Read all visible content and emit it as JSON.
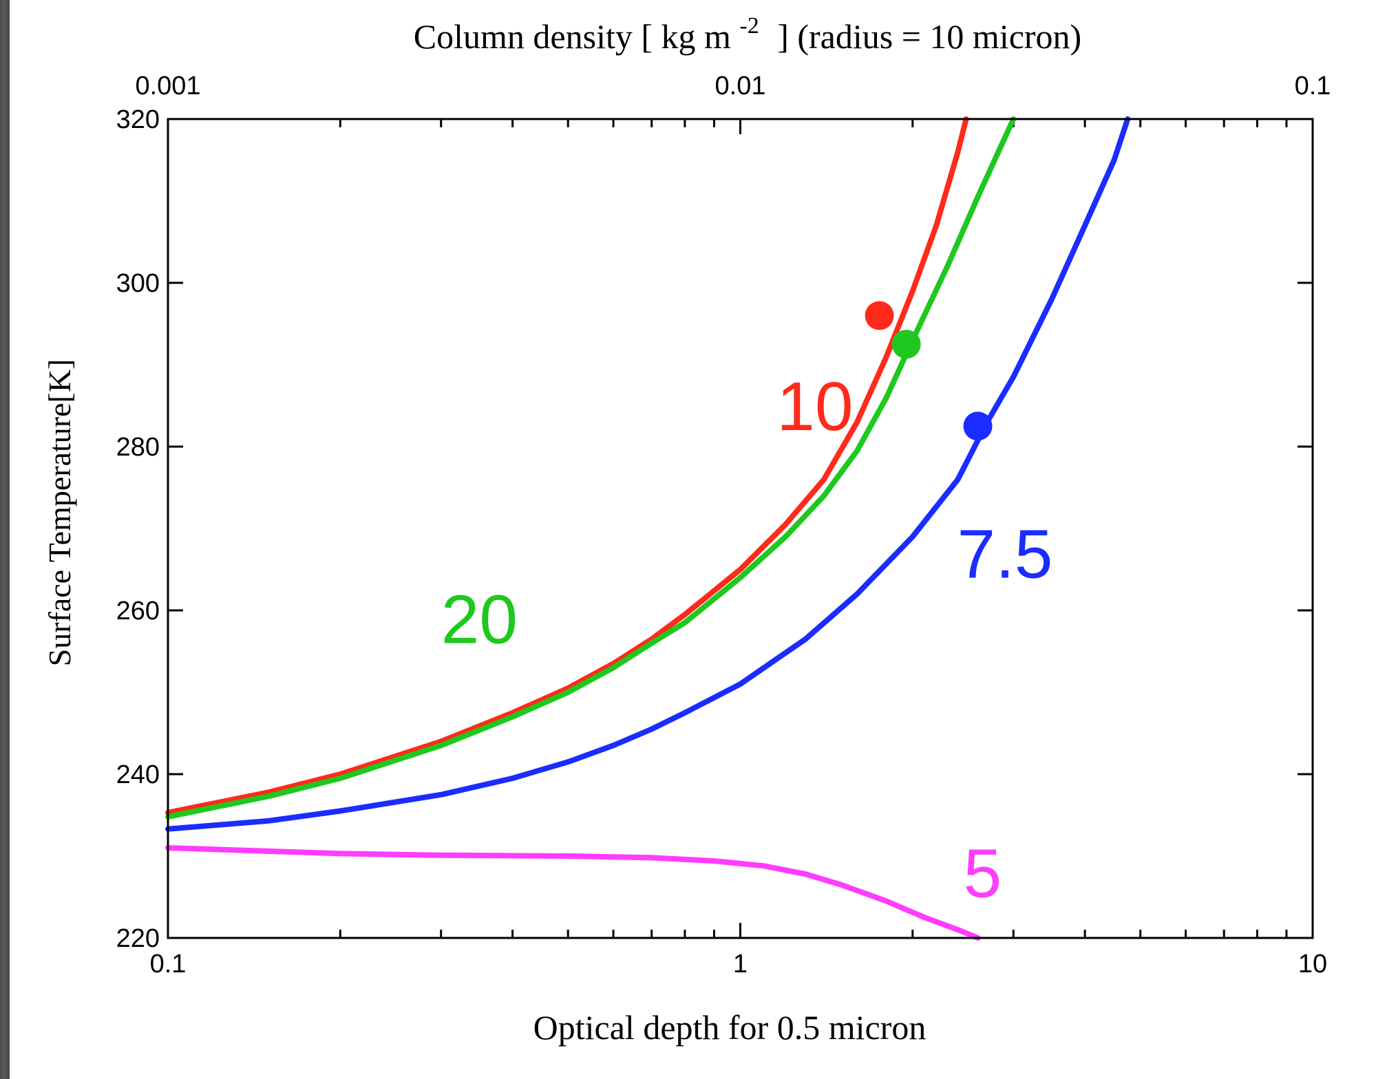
{
  "chart_data": {
    "type": "line",
    "xlabel": "Optical depth for 0.5 micron",
    "ylabel": "Surface Temperature[K]",
    "top_axis": {
      "label_prefix": "Column density [ kg m",
      "label_exp": "-2",
      "label_suffix": "] (radius = 10 micron)",
      "ticks": [
        0.001,
        0.01,
        0.1
      ],
      "tick_labels": [
        "0.001",
        "0.01",
        "0.1"
      ]
    },
    "x_scale": "log",
    "xlim": [
      0.1,
      10
    ],
    "ylim": [
      220,
      320
    ],
    "x_ticks": [
      0.1,
      1,
      10
    ],
    "x_tick_labels": [
      "0.1",
      "1",
      "10"
    ],
    "y_ticks": [
      220,
      240,
      260,
      280,
      300,
      320
    ],
    "y_tick_labels": [
      "220",
      "240",
      "260",
      "280",
      "300",
      "320"
    ],
    "grid": false,
    "series": [
      {
        "name": "10",
        "color": "#ff2a1a",
        "points": [
          [
            0.1,
            235.3
          ],
          [
            0.15,
            237.8
          ],
          [
            0.2,
            240.0
          ],
          [
            0.3,
            244.0
          ],
          [
            0.4,
            247.5
          ],
          [
            0.5,
            250.5
          ],
          [
            0.6,
            253.5
          ],
          [
            0.7,
            256.5
          ],
          [
            0.8,
            259.5
          ],
          [
            1.0,
            265.0
          ],
          [
            1.2,
            270.5
          ],
          [
            1.4,
            276.0
          ],
          [
            1.6,
            283.0
          ],
          [
            1.8,
            291.0
          ],
          [
            2.0,
            299.0
          ],
          [
            2.2,
            307.0
          ],
          [
            2.4,
            316.0
          ],
          [
            2.48,
            320.0
          ]
        ],
        "marker": [
          1.75,
          296
        ],
        "label_pos": [
          1.35,
          282
        ]
      },
      {
        "name": "20",
        "color": "#1ec81e",
        "points": [
          [
            0.1,
            234.8
          ],
          [
            0.15,
            237.3
          ],
          [
            0.2,
            239.5
          ],
          [
            0.3,
            243.5
          ],
          [
            0.4,
            247.0
          ],
          [
            0.5,
            250.0
          ],
          [
            0.6,
            253.0
          ],
          [
            0.7,
            256.0
          ],
          [
            0.8,
            258.5
          ],
          [
            1.0,
            264.0
          ],
          [
            1.2,
            269.0
          ],
          [
            1.4,
            274.0
          ],
          [
            1.6,
            279.5
          ],
          [
            1.8,
            286.0
          ],
          [
            2.0,
            293.0
          ],
          [
            2.3,
            302.0
          ],
          [
            2.6,
            310.5
          ],
          [
            3.0,
            320.0
          ]
        ],
        "marker": [
          1.95,
          292.5
        ],
        "label_pos": [
          0.35,
          256
        ]
      },
      {
        "name": "7.5",
        "color": "#1a2cff",
        "points": [
          [
            0.1,
            233.3
          ],
          [
            0.15,
            234.3
          ],
          [
            0.2,
            235.5
          ],
          [
            0.3,
            237.5
          ],
          [
            0.4,
            239.5
          ],
          [
            0.5,
            241.5
          ],
          [
            0.6,
            243.5
          ],
          [
            0.7,
            245.5
          ],
          [
            0.8,
            247.5
          ],
          [
            1.0,
            251.0
          ],
          [
            1.3,
            256.5
          ],
          [
            1.6,
            262.0
          ],
          [
            2.0,
            269.0
          ],
          [
            2.4,
            276.0
          ],
          [
            2.7,
            283.0
          ],
          [
            3.0,
            288.5
          ],
          [
            3.5,
            298.0
          ],
          [
            4.0,
            307.0
          ],
          [
            4.5,
            315.0
          ],
          [
            4.75,
            320.0
          ]
        ],
        "marker": [
          2.6,
          282.5
        ],
        "label_pos": [
          2.9,
          264
        ]
      },
      {
        "name": "5",
        "color": "#ff3cff",
        "points": [
          [
            0.1,
            231.0
          ],
          [
            0.2,
            230.3
          ],
          [
            0.3,
            230.1
          ],
          [
            0.5,
            230.0
          ],
          [
            0.7,
            229.8
          ],
          [
            0.9,
            229.4
          ],
          [
            1.1,
            228.8
          ],
          [
            1.3,
            227.8
          ],
          [
            1.5,
            226.5
          ],
          [
            1.8,
            224.5
          ],
          [
            2.1,
            222.5
          ],
          [
            2.4,
            221.0
          ],
          [
            2.6,
            220.0
          ]
        ],
        "label_pos": [
          2.65,
          225
        ]
      }
    ]
  }
}
